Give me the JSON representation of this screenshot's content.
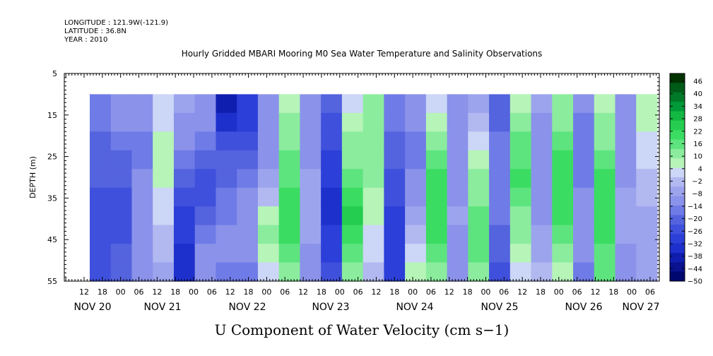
{
  "header": {
    "longitude": "LONGITUDE : 121.9W(-121.9)",
    "latitude": "LATITUDE : 36.8N",
    "year": "YEAR : 2010"
  },
  "chart_data": {
    "type": "heatmap",
    "title": "Hourly Gridded MBARI Mooring M0 Sea Water Temperature and Salinity Observations",
    "xlabel": "U Component of Water Velocity (cm s−1)",
    "ylabel": "DEPTH (m)",
    "ylim": [
      5,
      55
    ],
    "y_inverted": true,
    "y_ticks": [
      "5",
      "15",
      "25",
      "35",
      "45",
      "55"
    ],
    "x_hour_ticks": [
      "12",
      "18",
      "00",
      "06",
      "12",
      "18",
      "00",
      "06",
      "12",
      "18",
      "00",
      "06",
      "12",
      "18",
      "00",
      "06",
      "12",
      "18",
      "00",
      "06",
      "12",
      "18",
      "00",
      "06",
      "12",
      "18",
      "00",
      "06",
      "12",
      "18",
      "00",
      "06"
    ],
    "x_date_labels": [
      "NOV 20",
      "NOV 21",
      "NOV 22",
      "NOV 23",
      "NOV 24",
      "NOV 25",
      "NOV 26",
      "NOV 27"
    ],
    "colorbar_levels": [
      "46",
      "40",
      "34",
      "28",
      "22",
      "16",
      "10",
      "4",
      "−2",
      "−8",
      "−14",
      "−20",
      "−26",
      "−32",
      "−38",
      "−44",
      "−50"
    ],
    "colorbar_colors": [
      "#003300",
      "#005a18",
      "#007a28",
      "#009a38",
      "#13b843",
      "#24cc50",
      "#3bdc62",
      "#5ee47e",
      "#8bec9e",
      "#b6f4b8",
      "#ccd6f6",
      "#b2b8f0",
      "#9ca4ee",
      "#8a92ea",
      "#6f7be6",
      "#5463de",
      "#3f50dc",
      "#2c3fd8",
      "#1e30cc",
      "#101eb0",
      "#0a1290",
      "#000870"
    ],
    "data_range": {
      "depth": [
        10,
        55
      ],
      "time_start": "NOV 20 14:00",
      "time_end": "NOV 27 09:00"
    },
    "value_columns": [
      [
        -15,
        -15,
        -18,
        -20,
        -20,
        -22,
        -25,
        -25,
        -25,
        -24
      ],
      [
        -8,
        -10,
        -14,
        -18,
        -20,
        -22,
        -22,
        -22,
        -20,
        -18
      ],
      [
        -10,
        -12,
        -14,
        -14,
        -12,
        -10,
        -8,
        -8,
        -10,
        -12
      ],
      [
        2,
        4,
        6,
        8,
        6,
        4,
        2,
        0,
        -2,
        -4
      ],
      [
        -6,
        -8,
        -10,
        -14,
        -18,
        -22,
        -26,
        -28,
        -30,
        -32
      ],
      [
        -10,
        -12,
        -16,
        -20,
        -22,
        -22,
        -20,
        -16,
        -12,
        -8
      ],
      [
        -34,
        -30,
        -24,
        -20,
        -18,
        -16,
        -14,
        -12,
        -12,
        -14
      ],
      [
        -26,
        -26,
        -24,
        -20,
        -16,
        -12,
        -10,
        -10,
        -12,
        -14
      ],
      [
        -8,
        -10,
        -12,
        -10,
        -6,
        0,
        6,
        10,
        8,
        4
      ],
      [
        6,
        10,
        14,
        16,
        18,
        20,
        22,
        20,
        16,
        12
      ],
      [
        -12,
        -12,
        -10,
        -8,
        -6,
        -4,
        -4,
        -6,
        -8,
        -10
      ],
      [
        -20,
        -22,
        -24,
        -26,
        -28,
        -30,
        -30,
        -28,
        -26,
        -24
      ],
      [
        2,
        6,
        10,
        14,
        18,
        22,
        24,
        22,
        18,
        12
      ],
      [
        12,
        14,
        14,
        12,
        10,
        8,
        6,
        4,
        2,
        0
      ],
      [
        -14,
        -16,
        -18,
        -20,
        -22,
        -24,
        -26,
        -28,
        -28,
        -26
      ],
      [
        -10,
        -12,
        -14,
        -14,
        -12,
        -10,
        -6,
        -2,
        2,
        6
      ],
      [
        4,
        8,
        12,
        16,
        20,
        22,
        22,
        20,
        16,
        12
      ],
      [
        -8,
        -10,
        -12,
        -12,
        -10,
        -8,
        -6,
        -8,
        -10,
        -12
      ],
      [
        -4,
        -2,
        2,
        6,
        10,
        14,
        16,
        18,
        16,
        14
      ],
      [
        -20,
        -18,
        -16,
        -14,
        -14,
        -14,
        -16,
        -18,
        -20,
        -22
      ],
      [
        8,
        12,
        16,
        18,
        20,
        18,
        14,
        10,
        6,
        2
      ],
      [
        -6,
        -8,
        -10,
        -12,
        -12,
        -10,
        -8,
        -6,
        -4,
        -2
      ],
      [
        10,
        14,
        18,
        20,
        22,
        22,
        20,
        16,
        12,
        8
      ],
      [
        -12,
        -14,
        -16,
        -16,
        -14,
        -12,
        -10,
        -10,
        -12,
        -14
      ],
      [
        6,
        10,
        14,
        18,
        20,
        22,
        22,
        20,
        18,
        16
      ],
      [
        -10,
        -12,
        -12,
        -10,
        -8,
        -6,
        -4,
        -6,
        -8,
        -10
      ],
      [
        8,
        6,
        4,
        2,
        0,
        -2,
        -4,
        -6,
        -6,
        -4
      ]
    ]
  }
}
